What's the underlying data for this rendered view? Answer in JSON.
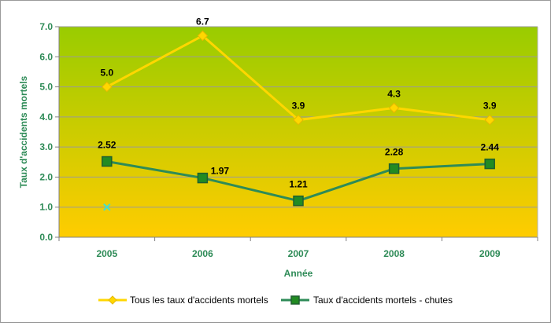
{
  "chart_data": {
    "type": "line",
    "title": "",
    "xlabel": "Année",
    "ylabel": "Taux d'accidents mortels",
    "categories": [
      "2005",
      "2006",
      "2007",
      "2008",
      "2009"
    ],
    "ylim": [
      0,
      7
    ],
    "yticks": [
      "0.0",
      "1.0",
      "2.0",
      "3.0",
      "4.0",
      "5.0",
      "6.0",
      "7.0"
    ],
    "grid": true,
    "legend_position": "bottom",
    "series": [
      {
        "name": "Tous les taux d'accidents mortels",
        "values": [
          5.0,
          6.7,
          3.9,
          4.3,
          3.9
        ],
        "labels": [
          "5.0",
          "6.7",
          "3.9",
          "4.3",
          "3.9"
        ],
        "color": "#FFD700",
        "marker": "diamond"
      },
      {
        "name": "Taux d'accidents mortels - chutes",
        "values": [
          2.52,
          1.97,
          1.21,
          2.28,
          2.44
        ],
        "labels": [
          "2.52",
          "1.97",
          "1.21",
          "2.28",
          "2.44"
        ],
        "color": "#2E8B57",
        "marker_fill": "#228B22",
        "marker": "square"
      }
    ],
    "annotations": [
      {
        "type": "marker",
        "symbol": "x",
        "x": "2005",
        "y": 1.0,
        "color": "#40E0D0"
      }
    ],
    "background_gradient": [
      "#99CC00",
      "#FFCC00"
    ],
    "axis_text_color": "#2E8B57"
  }
}
